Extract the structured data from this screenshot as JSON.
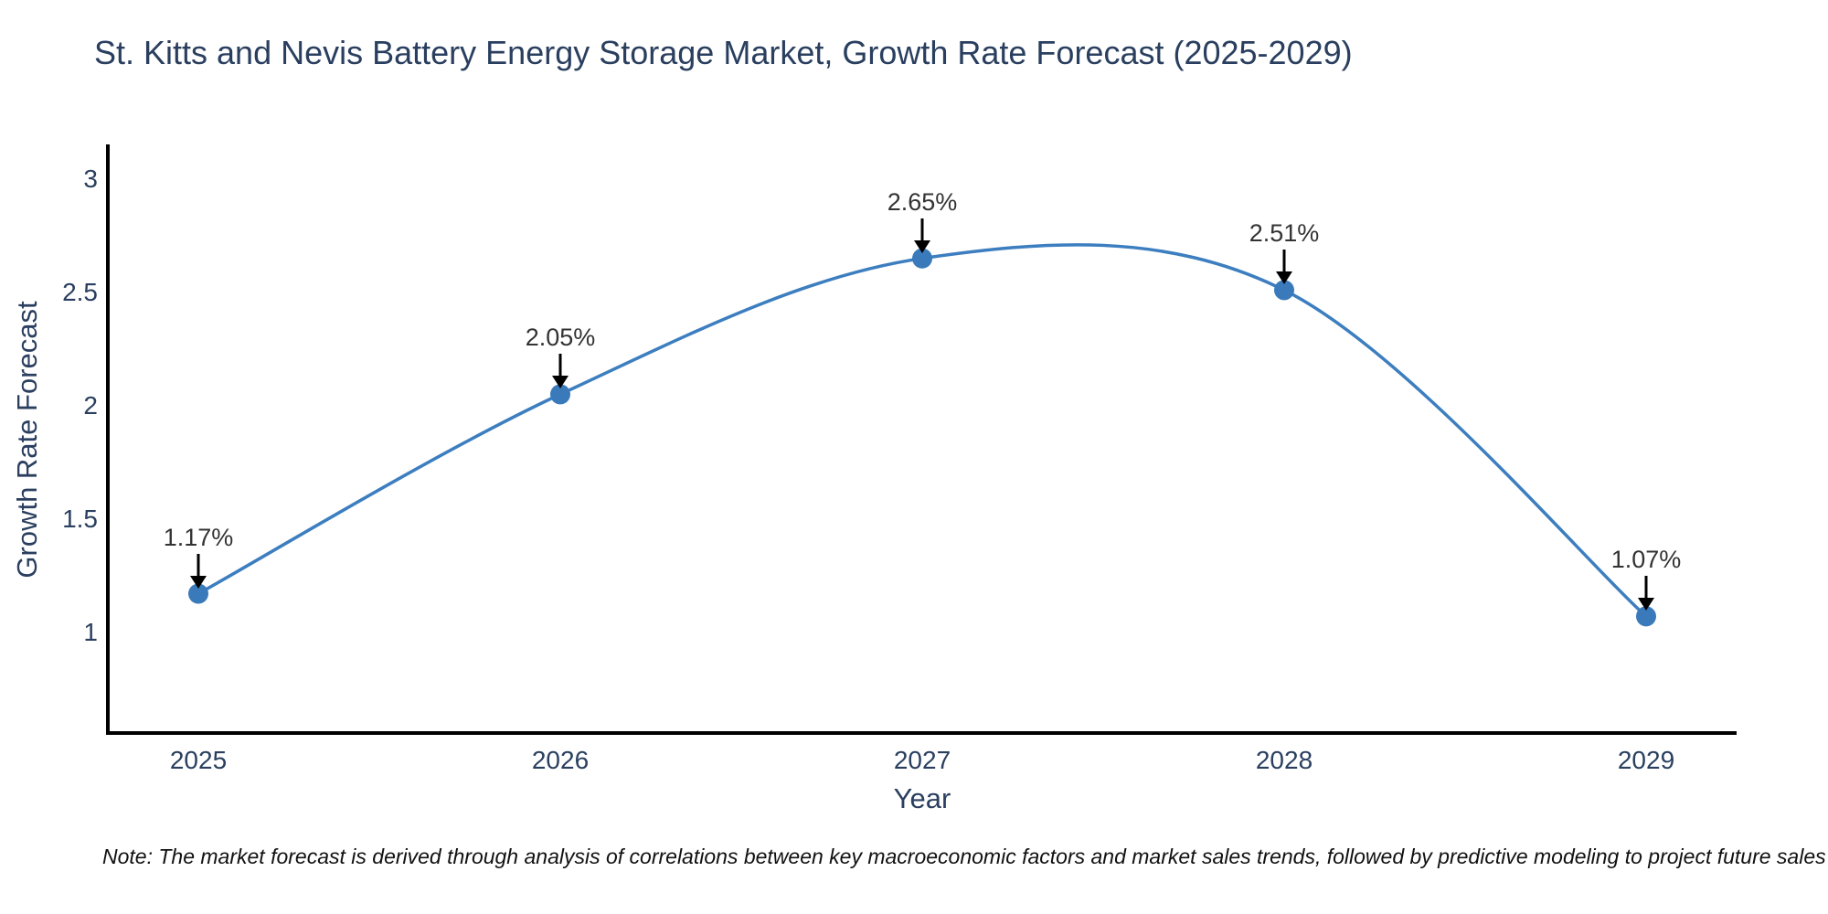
{
  "title": "St. Kitts and Nevis Battery Energy Storage Market, Growth Rate Forecast (2025-2029)",
  "note": "Note: The market forecast is derived through analysis of correlations between key macroeconomic factors and market sales trends, followed by predictive modeling to project future sales",
  "colors": {
    "line": "#3c7ebf",
    "marker": "#3a7abb",
    "axis_line": "#000000",
    "title_text": "#2a3f5f",
    "tick_text": "#2a3f5f",
    "annotation_text": "#333333",
    "annotation_arrow": "#000000",
    "background": "#ffffff"
  },
  "chart_data": {
    "type": "line",
    "title": "St. Kitts and Nevis Battery Energy Storage Market, Growth Rate Forecast (2025-2029)",
    "xlabel": "Year",
    "ylabel": "Growth Rate Forecast",
    "x": [
      2025,
      2026,
      2027,
      2028,
      2029
    ],
    "y": [
      1.17,
      2.05,
      2.65,
      2.51,
      1.07
    ],
    "point_labels": [
      "1.17%",
      "2.05%",
      "2.65%",
      "2.51%",
      "1.07%"
    ],
    "xtick_labels": [
      "2025",
      "2026",
      "2027",
      "2028",
      "2029"
    ],
    "ytick_values": [
      1,
      1.5,
      2,
      2.5,
      3
    ],
    "ytick_labels": [
      "1",
      "1.5",
      "2",
      "2.5",
      "3"
    ],
    "xlim": [
      2024.75,
      2029.25
    ],
    "ylim": [
      0.555,
      3.145
    ],
    "grid": false,
    "legend": "none",
    "line_shape": "spline",
    "markers": true,
    "annotation_arrows": true
  }
}
